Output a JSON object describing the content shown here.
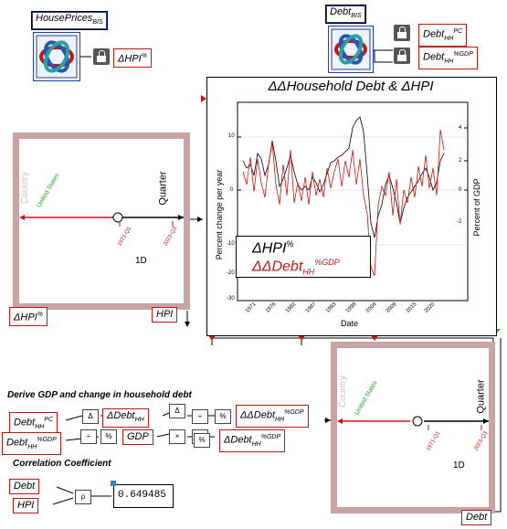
{
  "variables": {
    "house_prices": "HousePrices",
    "house_prices_sub": "BIS",
    "debt": "Debt",
    "debt_sub": "BIS",
    "dhpi_lock": "ΔHPI",
    "dhpi_lock_sup": "%",
    "debt_pc": "Debt",
    "debt_pc_sub": "HH",
    "debt_pc_sup": "PC",
    "debt_gdp": "Debt",
    "debt_gdp_sub": "HH",
    "debt_gdp_sup": "%GDP",
    "dhpi_left": "ΔHPI",
    "dhpi_left_sup": "%",
    "hpi_out": "HPI",
    "debt_out": "Debt"
  },
  "plot": {
    "title": "ΔΔHousehold Debt & ΔHPI",
    "ylabel_left": "Percent change per year",
    "ylabel_right": "Percent of GDP",
    "xlabel": "Date",
    "legend_1": "ΔHPI",
    "legend_1_sup": "%",
    "legend_2": "ΔΔDebt",
    "legend_2_sub": "HH",
    "legend_2_sup": "%GDP",
    "left_ticks": [
      "10",
      "0",
      "-10",
      "-20",
      "-30"
    ],
    "right_ticks": [
      "4",
      "2",
      "0",
      "-2"
    ],
    "x_ticks": [
      "1971",
      "1976",
      "1982",
      "1987",
      "1993",
      "1998",
      "2004",
      "2009",
      "2015",
      "2020"
    ]
  },
  "pivot_left": {
    "country_label": "Country",
    "country_value": "United States",
    "axis_label": "Quarter",
    "tick_start": "1971-Q1",
    "tick_end": "2023-Q3",
    "dim": "1D"
  },
  "pivot_right": {
    "country_label": "Country",
    "country_value": "United States",
    "axis_label": "Quarter",
    "tick_start": "1971-Q1",
    "tick_end": "2023-Q3",
    "dim": "1D"
  },
  "derive": {
    "heading": "Derive GDP and change in household debt",
    "in_pc": "Debt",
    "in_pc_sub": "HH",
    "in_pc_sup": "PC",
    "in_gdp": "Debt",
    "in_gdp_sub": "HH",
    "in_gdp_sup": "%GDP",
    "ddebt": "ΔDebt",
    "ddebt_sub": "HH",
    "gdp": "GDP",
    "out_dd": "ΔΔDebt",
    "out_dd_sub": "HH",
    "out_dd_sup": "%GDP",
    "out_d": "ΔDebt",
    "out_d_sub": "HH",
    "out_d_sup": "%GDP",
    "op_delta": "Δ",
    "op_div": "÷",
    "op_pct": "%",
    "op_mul": "×"
  },
  "correlation": {
    "heading": "Correlation Coefficient",
    "in_debt": "Debt",
    "in_hpi": "HPI",
    "op": "ρ",
    "value": "0.649485"
  },
  "colors": {
    "accent_red": "#c01818",
    "panel_border": "#c8a4a4",
    "selection_blue": "#1b3fa0",
    "green": "#2a9a2a"
  }
}
